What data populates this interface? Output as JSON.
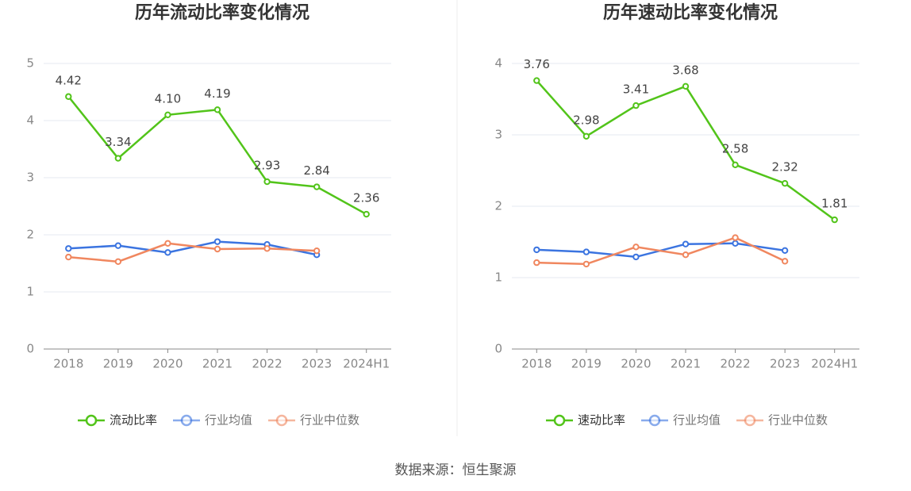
{
  "chart_data": [
    {
      "type": "line",
      "title": "历年流动比率变化情况",
      "categories": [
        "2018",
        "2019",
        "2020",
        "2021",
        "2022",
        "2023",
        "2024H1"
      ],
      "series": [
        {
          "name": "流动比率",
          "color": "#52c41a",
          "values": [
            4.42,
            3.34,
            4.1,
            4.19,
            2.93,
            2.84,
            2.36
          ],
          "value_labels": [
            "4.42",
            "3.34",
            "4.10",
            "4.19",
            "2.93",
            "2.84",
            "2.36"
          ]
        },
        {
          "name": "行业均值",
          "color": "#3b74e0",
          "values": [
            1.76,
            1.81,
            1.69,
            1.88,
            1.83,
            1.65,
            null
          ]
        },
        {
          "name": "行业中位数",
          "color": "#f0875f",
          "values": [
            1.61,
            1.53,
            1.85,
            1.75,
            1.76,
            1.72,
            null
          ]
        }
      ],
      "ylim": [
        0,
        5
      ],
      "yticks": [
        0,
        1,
        2,
        3,
        4,
        5
      ],
      "grid": true
    },
    {
      "type": "line",
      "title": "历年速动比率变化情况",
      "categories": [
        "2018",
        "2019",
        "2020",
        "2021",
        "2022",
        "2023",
        "2024H1"
      ],
      "series": [
        {
          "name": "速动比率",
          "color": "#52c41a",
          "values": [
            3.76,
            2.98,
            3.41,
            3.68,
            2.58,
            2.32,
            1.81
          ],
          "value_labels": [
            "3.76",
            "2.98",
            "3.41",
            "3.68",
            "2.58",
            "2.32",
            "1.81"
          ]
        },
        {
          "name": "行业均值",
          "color": "#3b74e0",
          "values": [
            1.39,
            1.36,
            1.29,
            1.47,
            1.48,
            1.38,
            null
          ]
        },
        {
          "name": "行业中位数",
          "color": "#f0875f",
          "values": [
            1.21,
            1.19,
            1.43,
            1.32,
            1.56,
            1.23,
            null
          ]
        }
      ],
      "ylim": [
        0,
        4
      ],
      "yticks": [
        0,
        1,
        2,
        3,
        4
      ],
      "grid": true
    }
  ],
  "source": "数据来源：恒生聚源"
}
